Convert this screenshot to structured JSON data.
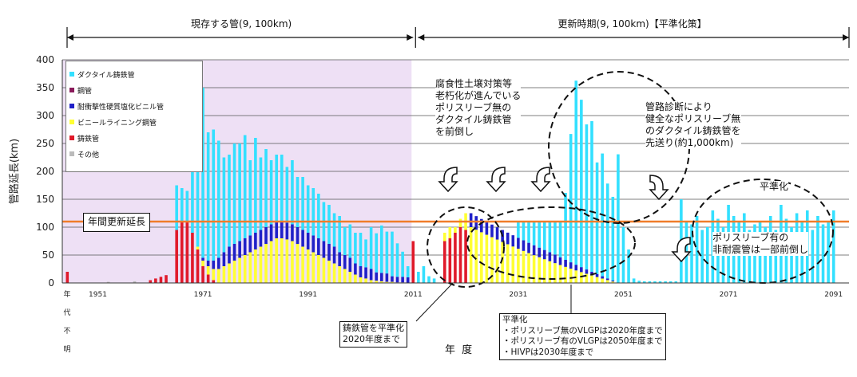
{
  "chart_data": {
    "type": "bar",
    "ylabel": "管路延長(km)",
    "xlabel": "年 度",
    "ylim": [
      0,
      400
    ],
    "yticks": [
      0,
      50,
      100,
      150,
      200,
      250,
      300,
      350,
      400
    ],
    "x_tick_labels": [
      "1951",
      "1971",
      "1991",
      "2011",
      "2031",
      "2051",
      "2071",
      "2091"
    ],
    "unknown_year_label": [
      "年",
      "代",
      "不",
      "明"
    ],
    "top_spans": [
      {
        "label": "現存する管(9, 100km)"
      },
      {
        "label": "更新時期(9, 100km)【平準化策】"
      }
    ],
    "annual_line": {
      "label": "年間更新延長",
      "value": 110,
      "color": "#f07d2a"
    },
    "legend": [
      {
        "name": "ダクタイル鋳鉄管",
        "color": "#33e0ff"
      },
      {
        "name": "鋼管",
        "color": "#8a1a5a"
      },
      {
        "name": "耐衝撃性硬質塩化ビニル管",
        "color": "#2020c8"
      },
      {
        "name": "ビニールライニング鋼管",
        "color": "#ffff33"
      },
      {
        "name": "鋳鉄管",
        "color": "#e01a2a"
      },
      {
        "name": "その他",
        "color": "#bbbbbb"
      }
    ],
    "series_values": {
      "note": "stacked values per year (km)",
      "existing": [
        {
          "year": 1966,
          "ci": 95,
          "vlgp": 0,
          "hivp": 0,
          "duct": 80
        },
        {
          "year": 1967,
          "ci": 110,
          "vlgp": 0,
          "hivp": 0,
          "duct": 60
        },
        {
          "year": 1968,
          "ci": 110,
          "vlgp": 0,
          "hivp": 0,
          "duct": 55
        },
        {
          "year": 1969,
          "ci": 90,
          "vlgp": 0,
          "hivp": 0,
          "duct": 140
        },
        {
          "year": 1970,
          "ci": 60,
          "vlgp": 5,
          "hivp": 0,
          "duct": 215
        },
        {
          "year": 1971,
          "ci": 30,
          "vlgp": 10,
          "hivp": 5,
          "duct": 305
        },
        {
          "year": 1972,
          "ci": 15,
          "vlgp": 15,
          "hivp": 10,
          "duct": 230
        },
        {
          "year": 1973,
          "ci": 5,
          "vlgp": 20,
          "hivp": 15,
          "duct": 235
        },
        {
          "year": 1974,
          "ci": 0,
          "vlgp": 25,
          "hivp": 20,
          "duct": 210
        },
        {
          "year": 1975,
          "ci": 0,
          "vlgp": 30,
          "hivp": 25,
          "duct": 170
        },
        {
          "year": 1976,
          "ci": 0,
          "vlgp": 35,
          "hivp": 30,
          "duct": 165
        },
        {
          "year": 1977,
          "ci": 0,
          "vlgp": 40,
          "hivp": 30,
          "duct": 180
        },
        {
          "year": 1978,
          "ci": 0,
          "vlgp": 45,
          "hivp": 30,
          "duct": 175
        },
        {
          "year": 1979,
          "ci": 0,
          "vlgp": 50,
          "hivp": 30,
          "duct": 185
        },
        {
          "year": 1980,
          "ci": 0,
          "vlgp": 55,
          "hivp": 30,
          "duct": 135
        },
        {
          "year": 1981,
          "ci": 0,
          "vlgp": 60,
          "hivp": 30,
          "duct": 170
        },
        {
          "year": 1982,
          "ci": 0,
          "vlgp": 65,
          "hivp": 30,
          "duct": 130
        },
        {
          "year": 1983,
          "ci": 0,
          "vlgp": 70,
          "hivp": 30,
          "duct": 140
        },
        {
          "year": 1984,
          "ci": 0,
          "vlgp": 75,
          "hivp": 30,
          "duct": 115
        },
        {
          "year": 1985,
          "ci": 0,
          "vlgp": 80,
          "hivp": 30,
          "duct": 120
        },
        {
          "year": 1986,
          "ci": 0,
          "vlgp": 80,
          "hivp": 30,
          "duct": 120
        },
        {
          "year": 1987,
          "ci": 0,
          "vlgp": 78,
          "hivp": 30,
          "duct": 100
        },
        {
          "year": 1988,
          "ci": 0,
          "vlgp": 75,
          "hivp": 30,
          "duct": 115
        },
        {
          "year": 1989,
          "ci": 0,
          "vlgp": 70,
          "hivp": 30,
          "duct": 90
        },
        {
          "year": 1990,
          "ci": 0,
          "vlgp": 65,
          "hivp": 30,
          "duct": 95
        },
        {
          "year": 1991,
          "ci": 0,
          "vlgp": 60,
          "hivp": 30,
          "duct": 85
        },
        {
          "year": 1992,
          "ci": 0,
          "vlgp": 55,
          "hivp": 30,
          "duct": 85
        },
        {
          "year": 1993,
          "ci": 0,
          "vlgp": 50,
          "hivp": 30,
          "duct": 80
        },
        {
          "year": 1994,
          "ci": 0,
          "vlgp": 45,
          "hivp": 30,
          "duct": 70
        },
        {
          "year": 1995,
          "ci": 0,
          "vlgp": 40,
          "hivp": 30,
          "duct": 70
        },
        {
          "year": 1996,
          "ci": 0,
          "vlgp": 35,
          "hivp": 30,
          "duct": 60
        },
        {
          "year": 1997,
          "ci": 0,
          "vlgp": 30,
          "hivp": 25,
          "duct": 65
        },
        {
          "year": 1998,
          "ci": 0,
          "vlgp": 25,
          "hivp": 25,
          "duct": 50
        },
        {
          "year": 1999,
          "ci": 0,
          "vlgp": 20,
          "hivp": 25,
          "duct": 60
        },
        {
          "year": 2000,
          "ci": 0,
          "vlgp": 15,
          "hivp": 20,
          "duct": 55
        },
        {
          "year": 2001,
          "ci": 0,
          "vlgp": 10,
          "hivp": 20,
          "duct": 60
        },
        {
          "year": 2002,
          "ci": 0,
          "vlgp": 8,
          "hivp": 20,
          "duct": 50
        },
        {
          "year": 2003,
          "ci": 0,
          "vlgp": 5,
          "hivp": 20,
          "duct": 75
        },
        {
          "year": 2004,
          "ci": 0,
          "vlgp": 4,
          "hivp": 15,
          "duct": 70
        },
        {
          "year": 2005,
          "ci": 0,
          "vlgp": 3,
          "hivp": 15,
          "duct": 85
        },
        {
          "year": 2006,
          "ci": 0,
          "vlgp": 2,
          "hivp": 15,
          "duct": 75
        },
        {
          "year": 2007,
          "ci": 0,
          "vlgp": 2,
          "hivp": 10,
          "duct": 80
        },
        {
          "year": 2008,
          "ci": 0,
          "vlgp": 1,
          "hivp": 10,
          "duct": 60
        },
        {
          "year": 2009,
          "ci": 0,
          "vlgp": 1,
          "hivp": 10,
          "duct": 45
        },
        {
          "year": 2010,
          "ci": 0,
          "vlgp": 0,
          "hivp": 10,
          "duct": 20
        }
      ]
    }
  },
  "annotations": {
    "n1": [
      "腐食性土壌対策等",
      "老朽化が進んでいる",
      "ポリスリーブ無の",
      "ダクタイル鋳鉄管",
      "を前倒し"
    ],
    "n2": [
      "管路診断により",
      "健全なポリスリーブ無",
      "のダクタイル鋳鉄管を",
      "先送り(約1,000km)"
    ],
    "n3": "平準化",
    "n4": [
      "ポリスリーブ有の",
      "非耐震管は一部前倒し"
    ],
    "box1": [
      "鋳鉄管を平準化",
      "2020年度まで"
    ],
    "box2": [
      "平準化",
      "・ポリスリーブ無のVLGPは2020年度まで",
      "・ポリスリーブ有のVLGPは2050年度まで",
      "・HIVPは2030年度まで"
    ]
  }
}
